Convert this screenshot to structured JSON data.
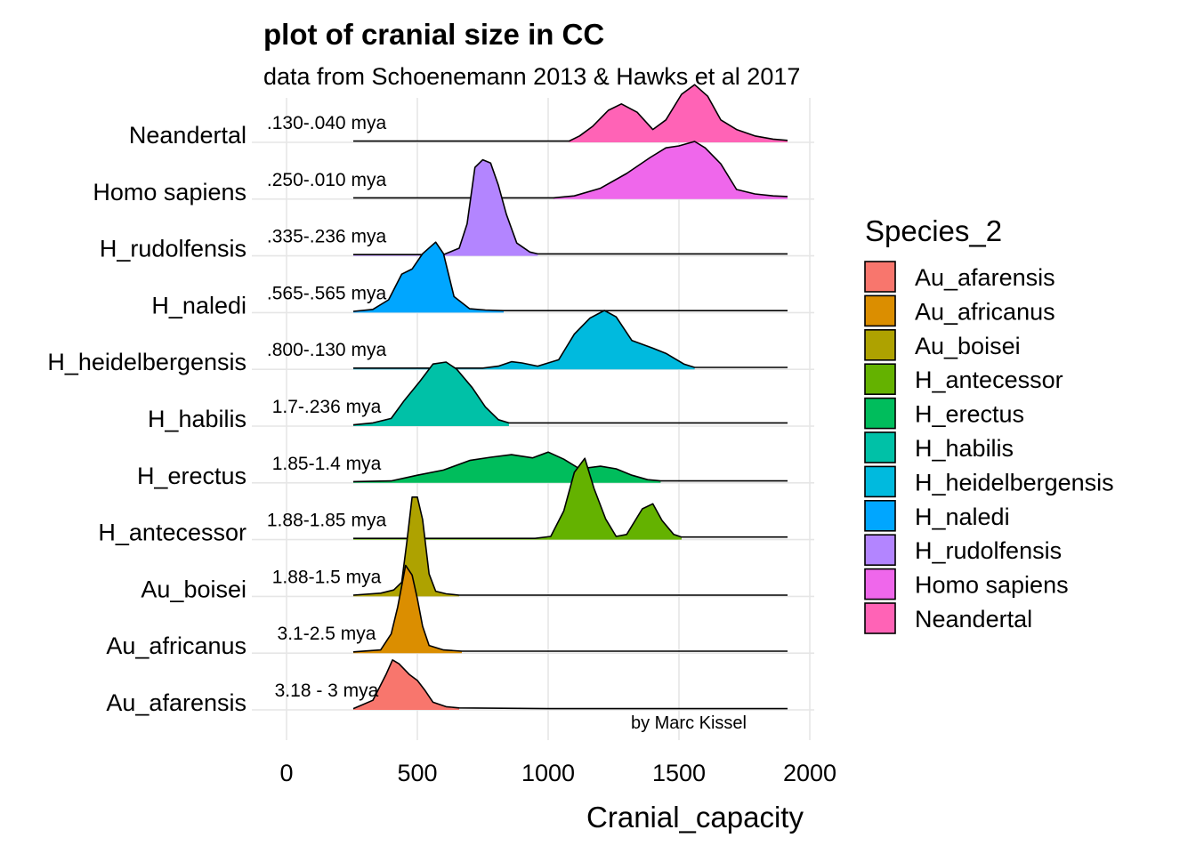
{
  "chart_data": {
    "type": "ridgeline",
    "title": "plot of cranial size in CC",
    "subtitle": "data from Schoenemann 2013 & Hawks et al 2017",
    "xlabel": "Cranial_capacity",
    "xlim": [
      -110,
      2010
    ],
    "xticks": [
      0,
      500,
      1000,
      1500,
      2000
    ],
    "x_tick_labels": [
      "0",
      "500",
      "1000",
      "1500",
      "2000"
    ],
    "grid": true,
    "caption": "by Marc Kissel",
    "legend": {
      "title": "Species_2",
      "position": "right",
      "entries": [
        "Au_afarensis",
        "Au_africanus",
        "Au_boisei",
        "H_antecessor",
        "H_erectus",
        "H_habilis",
        "H_heidelbergensis",
        "H_naledi",
        "H_rudolfensis",
        "Homo sapiens",
        "Neandertal"
      ]
    },
    "series": [
      {
        "name": "Au_afarensis",
        "color": "#F8766D",
        "date_label": "3.18 - 3 mya",
        "range": [
          255,
          1915
        ],
        "fill_range": [
          255,
          660
        ],
        "points": [
          [
            255,
            0.02
          ],
          [
            330,
            0.15
          ],
          [
            380,
            0.55
          ],
          [
            405,
            0.78
          ],
          [
            430,
            0.72
          ],
          [
            470,
            0.55
          ],
          [
            500,
            0.46
          ],
          [
            530,
            0.3
          ],
          [
            560,
            0.12
          ],
          [
            610,
            0.05
          ],
          [
            660,
            0.03
          ],
          [
            1000,
            0.02
          ],
          [
            1915,
            0.02
          ]
        ]
      },
      {
        "name": "Au_africanus",
        "color": "#DB8E00",
        "date_label": "3.1-2.5 mya",
        "range": [
          255,
          1915
        ],
        "fill_range": [
          255,
          670
        ],
        "points": [
          [
            255,
            0.02
          ],
          [
            360,
            0.05
          ],
          [
            400,
            0.3
          ],
          [
            425,
            0.72
          ],
          [
            455,
            1.37
          ],
          [
            480,
            1.22
          ],
          [
            500,
            0.85
          ],
          [
            520,
            0.42
          ],
          [
            545,
            0.12
          ],
          [
            600,
            0.05
          ],
          [
            670,
            0.03
          ],
          [
            1915,
            0.03
          ]
        ]
      },
      {
        "name": "Au_boisei",
        "color": "#AEA200",
        "date_label": "1.88-1.5 mya",
        "range": [
          255,
          1915
        ],
        "fill_range": [
          255,
          660
        ],
        "points": [
          [
            255,
            0.02
          ],
          [
            360,
            0.05
          ],
          [
            410,
            0.1
          ],
          [
            440,
            0.22
          ],
          [
            460,
            0.85
          ],
          [
            480,
            1.55
          ],
          [
            500,
            1.55
          ],
          [
            520,
            1.2
          ],
          [
            545,
            0.35
          ],
          [
            570,
            0.08
          ],
          [
            610,
            0.04
          ],
          [
            660,
            0.02
          ],
          [
            1915,
            0.02
          ]
        ]
      },
      {
        "name": "H_antecessor",
        "color": "#64B200",
        "date_label": "1.88-1.85 mya",
        "range": [
          255,
          1915
        ],
        "fill_range": [
          255,
          1510
        ],
        "points": [
          [
            255,
            0.02
          ],
          [
            950,
            0.02
          ],
          [
            1010,
            0.05
          ],
          [
            1060,
            0.45
          ],
          [
            1100,
            1.05
          ],
          [
            1140,
            1.27
          ],
          [
            1175,
            0.8
          ],
          [
            1220,
            0.32
          ],
          [
            1260,
            0.05
          ],
          [
            1300,
            0.08
          ],
          [
            1360,
            0.48
          ],
          [
            1400,
            0.56
          ],
          [
            1435,
            0.3
          ],
          [
            1480,
            0.08
          ],
          [
            1510,
            0.04
          ],
          [
            1915,
            0.04
          ]
        ]
      },
      {
        "name": "H_erectus",
        "color": "#00BD5C",
        "date_label": "1.85-1.4 mya",
        "range": [
          255,
          1915
        ],
        "fill_range": [
          255,
          1430
        ],
        "points": [
          [
            255,
            0.02
          ],
          [
            400,
            0.03
          ],
          [
            500,
            0.12
          ],
          [
            600,
            0.2
          ],
          [
            700,
            0.35
          ],
          [
            780,
            0.4
          ],
          [
            860,
            0.44
          ],
          [
            940,
            0.39
          ],
          [
            1000,
            0.48
          ],
          [
            1060,
            0.37
          ],
          [
            1120,
            0.22
          ],
          [
            1200,
            0.26
          ],
          [
            1260,
            0.22
          ],
          [
            1320,
            0.12
          ],
          [
            1380,
            0.05
          ],
          [
            1430,
            0.03
          ],
          [
            1915,
            0.03
          ]
        ]
      },
      {
        "name": "H_habilis",
        "color": "#00C1A7",
        "date_label": "1.7-.236 mya",
        "range": [
          255,
          1915
        ],
        "fill_range": [
          255,
          850
        ],
        "points": [
          [
            255,
            0.02
          ],
          [
            330,
            0.05
          ],
          [
            400,
            0.12
          ],
          [
            450,
            0.4
          ],
          [
            510,
            0.7
          ],
          [
            560,
            0.97
          ],
          [
            610,
            1.0
          ],
          [
            650,
            0.89
          ],
          [
            710,
            0.6
          ],
          [
            760,
            0.3
          ],
          [
            810,
            0.1
          ],
          [
            850,
            0.05
          ],
          [
            1915,
            0.05
          ]
        ]
      },
      {
        "name": "H_heidelbergensis",
        "color": "#00BADE",
        "date_label": ".800-.130 mya",
        "range": [
          255,
          1915
        ],
        "fill_range": [
          255,
          1560
        ],
        "points": [
          [
            255,
            0.02
          ],
          [
            750,
            0.02
          ],
          [
            810,
            0.05
          ],
          [
            860,
            0.12
          ],
          [
            900,
            0.1
          ],
          [
            960,
            0.05
          ],
          [
            1040,
            0.15
          ],
          [
            1100,
            0.55
          ],
          [
            1160,
            0.8
          ],
          [
            1215,
            0.92
          ],
          [
            1260,
            0.82
          ],
          [
            1320,
            0.45
          ],
          [
            1400,
            0.33
          ],
          [
            1450,
            0.25
          ],
          [
            1520,
            0.08
          ],
          [
            1560,
            0.03
          ],
          [
            1915,
            0.03
          ]
        ]
      },
      {
        "name": "H_naledi",
        "color": "#00A6FF",
        "date_label": ".565-.565 mya",
        "range": [
          255,
          1915
        ],
        "fill_range": [
          255,
          830
        ],
        "points": [
          [
            255,
            0.02
          ],
          [
            330,
            0.05
          ],
          [
            390,
            0.2
          ],
          [
            440,
            0.6
          ],
          [
            480,
            0.68
          ],
          [
            520,
            0.92
          ],
          [
            570,
            1.1
          ],
          [
            600,
            0.92
          ],
          [
            640,
            0.25
          ],
          [
            700,
            0.06
          ],
          [
            760,
            0.04
          ],
          [
            830,
            0.03
          ],
          [
            1915,
            0.03
          ]
        ]
      },
      {
        "name": "H_rudolfensis",
        "color": "#B385FF",
        "date_label": ".335-.236 mya",
        "range": [
          255,
          1915
        ],
        "fill_range": [
          255,
          960
        ],
        "points": [
          [
            255,
            0.02
          ],
          [
            600,
            0.02
          ],
          [
            660,
            0.12
          ],
          [
            690,
            0.5
          ],
          [
            720,
            1.38
          ],
          [
            750,
            1.5
          ],
          [
            780,
            1.45
          ],
          [
            810,
            1.1
          ],
          [
            840,
            0.65
          ],
          [
            880,
            0.2
          ],
          [
            930,
            0.06
          ],
          [
            960,
            0.03
          ],
          [
            1915,
            0.03
          ]
        ]
      },
      {
        "name": "Homo sapiens",
        "color": "#EF67EB",
        "date_label": ".250-.010 mya",
        "range": [
          255,
          1915
        ],
        "fill_range": [
          1020,
          1915
        ],
        "points": [
          [
            255,
            0.02
          ],
          [
            1020,
            0.02
          ],
          [
            1100,
            0.05
          ],
          [
            1200,
            0.17
          ],
          [
            1300,
            0.4
          ],
          [
            1390,
            0.65
          ],
          [
            1450,
            0.8
          ],
          [
            1500,
            0.83
          ],
          [
            1560,
            0.9
          ],
          [
            1600,
            0.8
          ],
          [
            1660,
            0.55
          ],
          [
            1720,
            0.15
          ],
          [
            1790,
            0.08
          ],
          [
            1860,
            0.05
          ],
          [
            1915,
            0.04
          ]
        ]
      },
      {
        "name": "Neandertal",
        "color": "#FF63B6",
        "date_label": ".130-.040 mya",
        "range": [
          255,
          1915
        ],
        "fill_range": [
          1080,
          1915
        ],
        "points": [
          [
            255,
            0.02
          ],
          [
            1080,
            0.02
          ],
          [
            1120,
            0.1
          ],
          [
            1170,
            0.25
          ],
          [
            1230,
            0.5
          ],
          [
            1280,
            0.6
          ],
          [
            1340,
            0.47
          ],
          [
            1400,
            0.2
          ],
          [
            1450,
            0.35
          ],
          [
            1510,
            0.75
          ],
          [
            1560,
            0.9
          ],
          [
            1610,
            0.72
          ],
          [
            1660,
            0.35
          ],
          [
            1720,
            0.2
          ],
          [
            1790,
            0.1
          ],
          [
            1860,
            0.05
          ],
          [
            1915,
            0.03
          ]
        ]
      }
    ]
  }
}
